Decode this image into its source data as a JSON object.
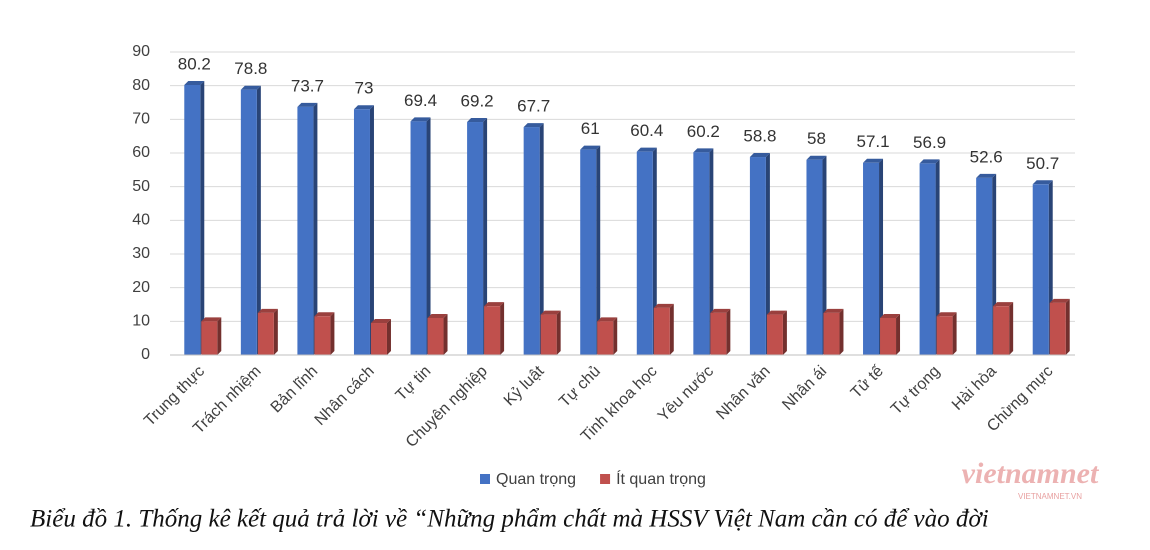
{
  "chart_data": {
    "type": "bar",
    "categories": [
      "Trung thực",
      "Trách nhiệm",
      "Bản lĩnh",
      "Nhân cách",
      "Tự tin",
      "Chuyên nghiệp",
      "Kỷ luật",
      "Tự chủ",
      "Tinh khoa học",
      "Yêu nước",
      "Nhân văn",
      "Nhân ái",
      "Tử tế",
      "Tự trọng",
      "Hài hòa",
      "Chừng mực"
    ],
    "series": [
      {
        "name": "Quan trọng",
        "color": "#4472c4",
        "values": [
          80.2,
          78.8,
          73.7,
          73,
          69.4,
          69.2,
          67.7,
          61,
          60.4,
          60.2,
          58.8,
          58,
          57.1,
          56.9,
          52.6,
          50.7
        ]
      },
      {
        "name": "Ít quan trọng",
        "color": "#c0504d",
        "values": [
          10,
          12.5,
          11.5,
          9.5,
          11,
          14.5,
          12,
          10,
          14,
          12.5,
          12,
          12.5,
          11,
          11.5,
          14.5,
          15.5
        ]
      }
    ],
    "ylim": [
      0,
      90
    ],
    "yticks": [
      0,
      10,
      20,
      30,
      40,
      50,
      60,
      70,
      80,
      90
    ],
    "grid": true,
    "legend": "bottom",
    "caption": "Biểu đồ 1. Thống kê kết quả trả lời về “Những phẩm chất mà HSSV Việt Nam cần có để vào đời",
    "watermark": "vietnamnet",
    "watermark_sub": "VIETNAMNET.VN"
  }
}
